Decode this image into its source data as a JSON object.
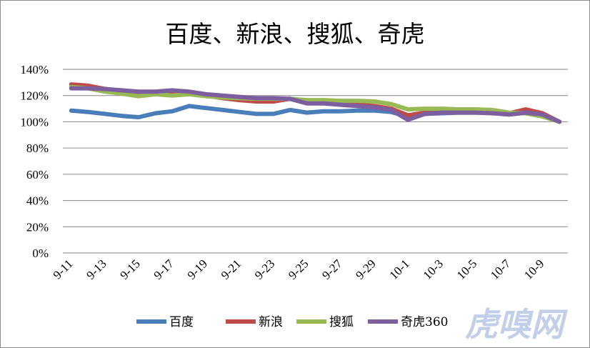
{
  "chart_data": {
    "type": "line",
    "title": "百度、新浪、搜狐、奇虎",
    "xlabel": "",
    "ylabel": "",
    "ylim": [
      0,
      140
    ],
    "y_ticks": [
      "0%",
      "20%",
      "40%",
      "60%",
      "80%",
      "100%",
      "120%",
      "140%"
    ],
    "y_tick_values": [
      0,
      20,
      40,
      60,
      80,
      100,
      120,
      140
    ],
    "x": [
      "9-11",
      "9-12",
      "9-13",
      "9-14",
      "9-15",
      "9-16",
      "9-17",
      "9-18",
      "9-19",
      "9-20",
      "9-21",
      "9-22",
      "9-23",
      "9-24",
      "9-25",
      "9-26",
      "9-27",
      "9-28",
      "9-29",
      "9-30",
      "10-1",
      "10-2",
      "10-3",
      "10-4",
      "10-5",
      "10-6",
      "10-7",
      "10-8",
      "10-9",
      "10-10"
    ],
    "x_tick_labels": [
      "9-11",
      "9-13",
      "9-15",
      "9-17",
      "9-19",
      "9-21",
      "9-23",
      "9-25",
      "9-27",
      "9-29",
      "10-1",
      "10-3",
      "10-5",
      "10-7",
      "10-9"
    ],
    "grid": true,
    "legend_position": "bottom",
    "series": [
      {
        "name": "百度",
        "color": "#4a7ebb",
        "values": [
          108.5,
          107.5,
          106,
          104.5,
          103.5,
          106.5,
          108,
          112,
          110.5,
          109,
          107.5,
          106,
          106,
          109,
          107,
          108,
          108,
          108.5,
          108.5,
          107.5,
          104,
          106,
          106.5,
          107,
          107,
          107,
          105.5,
          107,
          105.5,
          100
        ]
      },
      {
        "name": "新浪",
        "color": "#be4b48",
        "values": [
          128.5,
          127.5,
          125,
          123,
          122,
          122,
          123,
          122,
          120,
          118,
          116.5,
          115.5,
          115.5,
          117.5,
          114.5,
          114.5,
          114,
          113.5,
          112,
          110,
          105,
          107,
          107.5,
          108,
          108,
          107.5,
          106.5,
          109.5,
          106.5,
          100
        ]
      },
      {
        "name": "搜狐",
        "color": "#98b954",
        "values": [
          126.5,
          125.5,
          123,
          121.5,
          119.5,
          121,
          120,
          121,
          119.5,
          118.5,
          118,
          117.5,
          117.5,
          117.5,
          116.5,
          116.5,
          116,
          116,
          115.5,
          113.5,
          109.5,
          110,
          110,
          109.5,
          109.5,
          109,
          107,
          106.5,
          104,
          100
        ]
      },
      {
        "name": "奇虎360",
        "color": "#7d5fa0",
        "values": [
          125.5,
          125.5,
          125,
          124,
          123,
          123,
          124,
          123,
          121,
          120,
          119,
          118,
          118,
          117.5,
          114,
          114,
          113,
          112,
          111,
          109,
          101.5,
          106,
          107,
          107,
          107,
          106.5,
          105.5,
          107,
          105.5,
          100
        ]
      }
    ]
  },
  "watermark": "虎嗅网"
}
